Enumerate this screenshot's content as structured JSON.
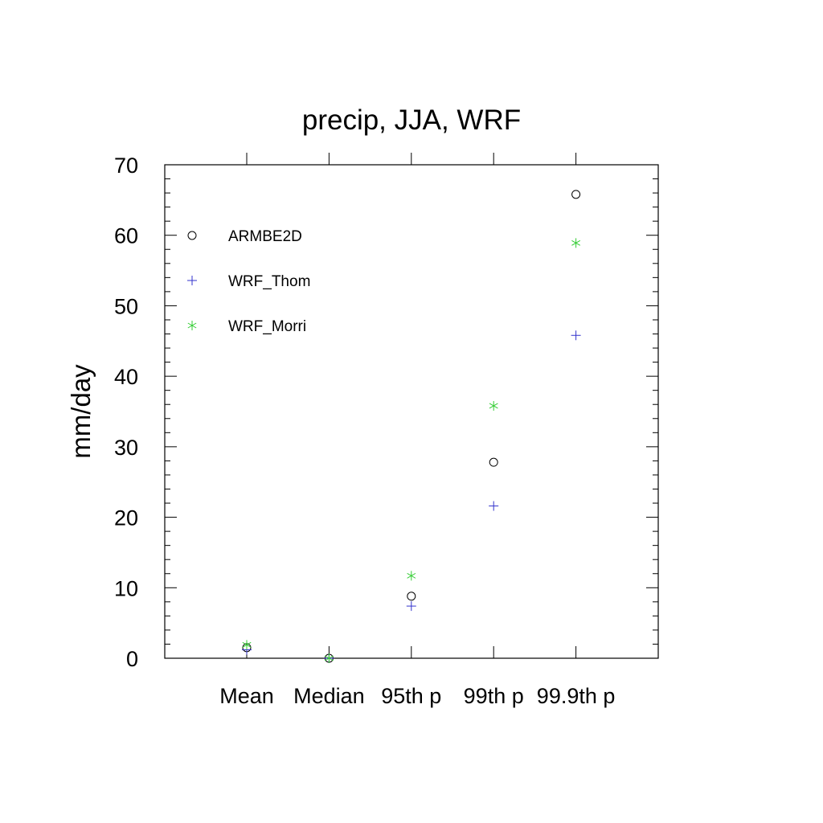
{
  "chart_data": {
    "type": "scatter",
    "title": "precip, JJA, WRF",
    "xlabel": "",
    "ylabel": "mm/day",
    "categories": [
      "Mean",
      "Median",
      "95th p",
      "99th p",
      "99.9th p"
    ],
    "ylim": [
      0,
      70
    ],
    "yticks": [
      0,
      10,
      20,
      30,
      40,
      50,
      60,
      70
    ],
    "grid": false,
    "legend_position": "top-left",
    "series": [
      {
        "name": "ARMBE2D",
        "marker": "circle",
        "color": "#000000",
        "values": [
          1.5,
          0.0,
          8.8,
          27.8,
          65.8
        ]
      },
      {
        "name": "WRF_Thom",
        "marker": "plus",
        "color": "#3333cc",
        "values": [
          1.2,
          0.0,
          7.4,
          21.6,
          45.8
        ]
      },
      {
        "name": "WRF_Morri",
        "marker": "asterisk",
        "color": "#33cc33",
        "values": [
          1.9,
          0.0,
          11.7,
          35.8,
          58.9
        ]
      }
    ]
  }
}
